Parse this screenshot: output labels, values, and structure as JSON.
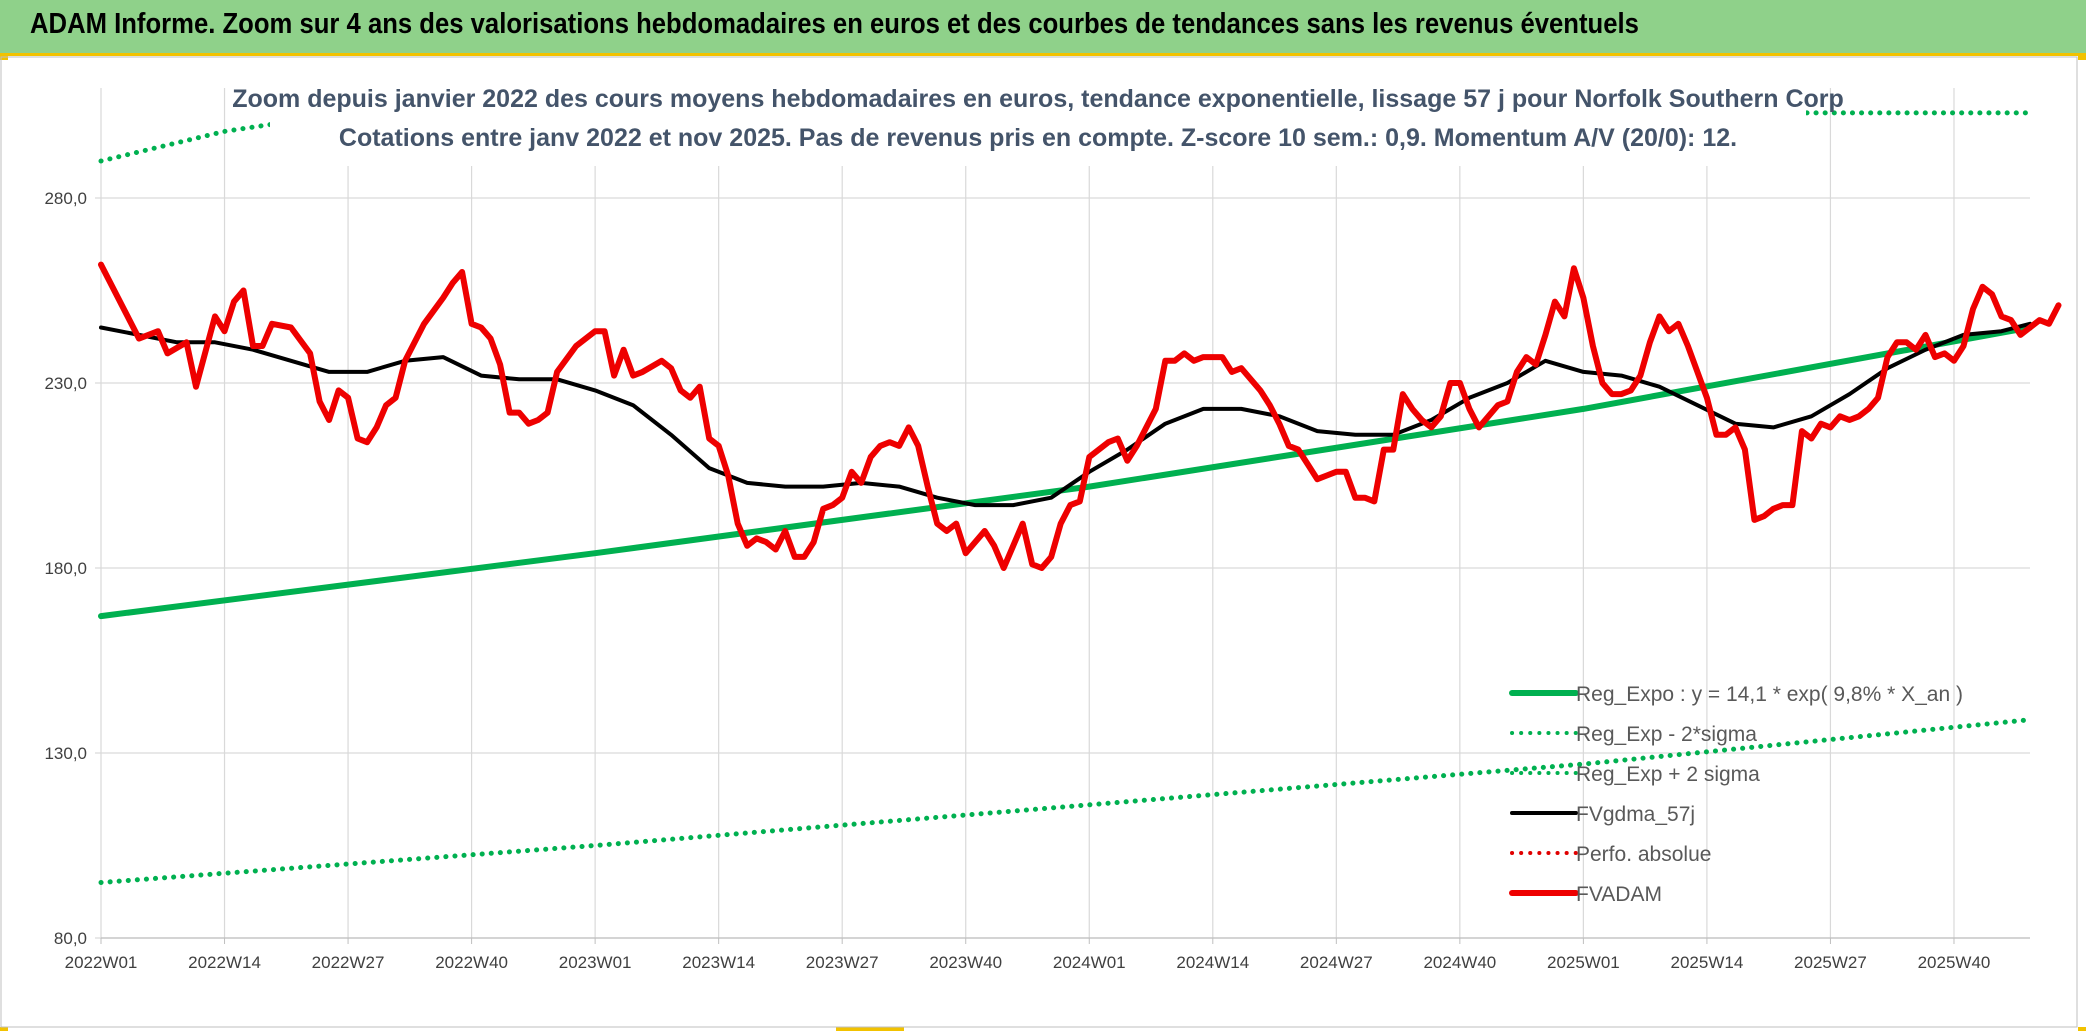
{
  "header": {
    "title": "ADAM Informe. Zoom sur 4 ans des valorisations hebdomadaires en euros et des courbes de tendances sans les revenus éventuels"
  },
  "colors": {
    "header_bg": "#8fd18a",
    "header_border": "#f2c200",
    "reg_expo": "#00b050",
    "fvgdma": "#000000",
    "perfo": "#e00000",
    "fvadam": "#ee0000",
    "title_text": "#44546a",
    "grid": "#d9d9d9"
  },
  "chart_data": {
    "type": "line",
    "title": "Zoom depuis janvier 2022 des cours moyens hebdomadaires en euros, tendance exponentielle, lissage 57 j pour Norfolk Southern Corp",
    "subtitle": "Cotations entre janv 2022 et nov 2025. Pas de revenus pris en compte. Z-score 10 sem.: 0,9. Momentum A/V (20/0): 12.",
    "ylim": [
      80,
      280
    ],
    "y_ticks": [
      280,
      230,
      180,
      130,
      80
    ],
    "y_tick_labels": [
      "280,0",
      "230,0",
      "180,0",
      "130,0",
      "80,0"
    ],
    "x_range_weeks": [
      0,
      203
    ],
    "x_ticks": [
      {
        "week": 0,
        "label": "2022W01"
      },
      {
        "week": 13,
        "label": "2022W14"
      },
      {
        "week": 26,
        "label": "2022W27"
      },
      {
        "week": 39,
        "label": "2022W40"
      },
      {
        "week": 52,
        "label": "2023W01"
      },
      {
        "week": 65,
        "label": "2023W14"
      },
      {
        "week": 78,
        "label": "2023W27"
      },
      {
        "week": 91,
        "label": "2023W40"
      },
      {
        "week": 104,
        "label": "2024W01"
      },
      {
        "week": 117,
        "label": "2024W14"
      },
      {
        "week": 130,
        "label": "2024W27"
      },
      {
        "week": 143,
        "label": "2024W40"
      },
      {
        "week": 156,
        "label": "2025W01"
      },
      {
        "week": 169,
        "label": "2025W14"
      },
      {
        "week": 182,
        "label": "2025W27"
      },
      {
        "week": 195,
        "label": "2025W40"
      }
    ],
    "grid": true,
    "legend_position": "bottom-right",
    "series": [
      {
        "name": "Reg_Expo : y = 14,1 * exp( 9,8% *  X_an )",
        "style": "solid-thick",
        "color": "#00b050",
        "points": [
          [
            0,
            167
          ],
          [
            52,
            184
          ],
          [
            104,
            202
          ],
          [
            156,
            223
          ],
          [
            203,
            245
          ]
        ]
      },
      {
        "name": "Reg_Exp - 2*sigma",
        "style": "dotted",
        "color": "#00b050",
        "points": [
          [
            0,
            95
          ],
          [
            52,
            105
          ],
          [
            104,
            116
          ],
          [
            156,
            127
          ],
          [
            203,
            139
          ]
        ]
      },
      {
        "name": "Reg_Exp + 2 sigma",
        "style": "dotted",
        "color": "#00b050",
        "points": [
          [
            0,
            290
          ],
          [
            13,
            298
          ],
          [
            26,
            303
          ],
          [
            182,
            303
          ],
          [
            203,
            303
          ]
        ]
      },
      {
        "name": "FVgdma_57j",
        "style": "solid",
        "color": "#000000",
        "points": [
          [
            0,
            245
          ],
          [
            4,
            243
          ],
          [
            8,
            241
          ],
          [
            12,
            241
          ],
          [
            16,
            239
          ],
          [
            20,
            236
          ],
          [
            24,
            233
          ],
          [
            28,
            233
          ],
          [
            32,
            236
          ],
          [
            36,
            237
          ],
          [
            40,
            232
          ],
          [
            44,
            231
          ],
          [
            48,
            231
          ],
          [
            52,
            228
          ],
          [
            56,
            224
          ],
          [
            60,
            216
          ],
          [
            64,
            207
          ],
          [
            68,
            203
          ],
          [
            72,
            202
          ],
          [
            76,
            202
          ],
          [
            80,
            203
          ],
          [
            84,
            202
          ],
          [
            88,
            199
          ],
          [
            92,
            197
          ],
          [
            96,
            197
          ],
          [
            100,
            199
          ],
          [
            104,
            206
          ],
          [
            108,
            212
          ],
          [
            112,
            219
          ],
          [
            116,
            223
          ],
          [
            120,
            223
          ],
          [
            124,
            221
          ],
          [
            128,
            217
          ],
          [
            132,
            216
          ],
          [
            136,
            216
          ],
          [
            140,
            220
          ],
          [
            144,
            226
          ],
          [
            148,
            230
          ],
          [
            152,
            236
          ],
          [
            156,
            233
          ],
          [
            160,
            232
          ],
          [
            164,
            229
          ],
          [
            168,
            224
          ],
          [
            172,
            219
          ],
          [
            176,
            218
          ],
          [
            180,
            221
          ],
          [
            184,
            227
          ],
          [
            188,
            234
          ],
          [
            192,
            239
          ],
          [
            196,
            243
          ],
          [
            200,
            244
          ],
          [
            203,
            246
          ]
        ]
      },
      {
        "name": "Perfo. absolue",
        "style": "dotted",
        "color": "#e00000",
        "points": []
      },
      {
        "name": "FVADAM",
        "style": "solid-thick",
        "color": "#ee0000",
        "points": [
          [
            0,
            262
          ],
          [
            2,
            252
          ],
          [
            4,
            242
          ],
          [
            6,
            244
          ],
          [
            7,
            238
          ],
          [
            9,
            241
          ],
          [
            10,
            229
          ],
          [
            12,
            248
          ],
          [
            13,
            244
          ],
          [
            14,
            252
          ],
          [
            15,
            255
          ],
          [
            16,
            240
          ],
          [
            17,
            240
          ],
          [
            18,
            246
          ],
          [
            20,
            245
          ],
          [
            22,
            238
          ],
          [
            23,
            225
          ],
          [
            24,
            220
          ],
          [
            25,
            228
          ],
          [
            26,
            226
          ],
          [
            27,
            215
          ],
          [
            28,
            214
          ],
          [
            29,
            218
          ],
          [
            30,
            224
          ],
          [
            31,
            226
          ],
          [
            32,
            236
          ],
          [
            34,
            246
          ],
          [
            36,
            253
          ],
          [
            37,
            257
          ],
          [
            38,
            260
          ],
          [
            39,
            246
          ],
          [
            40,
            245
          ],
          [
            41,
            242
          ],
          [
            42,
            235
          ],
          [
            43,
            222
          ],
          [
            44,
            222
          ],
          [
            45,
            219
          ],
          [
            46,
            220
          ],
          [
            47,
            222
          ],
          [
            48,
            233
          ],
          [
            50,
            240
          ],
          [
            52,
            244
          ],
          [
            53,
            244
          ],
          [
            54,
            232
          ],
          [
            55,
            239
          ],
          [
            56,
            232
          ],
          [
            57,
            233
          ],
          [
            59,
            236
          ],
          [
            60,
            234
          ],
          [
            61,
            228
          ],
          [
            62,
            226
          ],
          [
            63,
            229
          ],
          [
            64,
            215
          ],
          [
            65,
            213
          ],
          [
            66,
            205
          ],
          [
            67,
            192
          ],
          [
            68,
            186
          ],
          [
            69,
            188
          ],
          [
            70,
            187
          ],
          [
            71,
            185
          ],
          [
            72,
            190
          ],
          [
            73,
            183
          ],
          [
            74,
            183
          ],
          [
            75,
            187
          ],
          [
            76,
            196
          ],
          [
            77,
            197
          ],
          [
            78,
            199
          ],
          [
            79,
            206
          ],
          [
            80,
            203
          ],
          [
            81,
            210
          ],
          [
            82,
            213
          ],
          [
            83,
            214
          ],
          [
            84,
            213
          ],
          [
            85,
            218
          ],
          [
            86,
            213
          ],
          [
            87,
            202
          ],
          [
            88,
            192
          ],
          [
            89,
            190
          ],
          [
            90,
            192
          ],
          [
            91,
            184
          ],
          [
            92,
            187
          ],
          [
            93,
            190
          ],
          [
            94,
            186
          ],
          [
            95,
            180
          ],
          [
            96,
            186
          ],
          [
            97,
            192
          ],
          [
            98,
            181
          ],
          [
            99,
            180
          ],
          [
            100,
            183
          ],
          [
            101,
            192
          ],
          [
            102,
            197
          ],
          [
            103,
            198
          ],
          [
            104,
            210
          ],
          [
            105,
            212
          ],
          [
            106,
            214
          ],
          [
            107,
            215
          ],
          [
            108,
            209
          ],
          [
            109,
            213
          ],
          [
            110,
            218
          ],
          [
            111,
            223
          ],
          [
            112,
            236
          ],
          [
            113,
            236
          ],
          [
            114,
            238
          ],
          [
            115,
            236
          ],
          [
            116,
            237
          ],
          [
            117,
            237
          ],
          [
            118,
            237
          ],
          [
            119,
            233
          ],
          [
            120,
            234
          ],
          [
            121,
            231
          ],
          [
            122,
            228
          ],
          [
            123,
            224
          ],
          [
            124,
            219
          ],
          [
            125,
            213
          ],
          [
            126,
            212
          ],
          [
            127,
            208
          ],
          [
            128,
            204
          ],
          [
            129,
            205
          ],
          [
            130,
            206
          ],
          [
            131,
            206
          ],
          [
            132,
            199
          ],
          [
            133,
            199
          ],
          [
            134,
            198
          ],
          [
            135,
            212
          ],
          [
            136,
            212
          ],
          [
            137,
            227
          ],
          [
            138,
            223
          ],
          [
            139,
            220
          ],
          [
            140,
            218
          ],
          [
            141,
            221
          ],
          [
            142,
            230
          ],
          [
            143,
            230
          ],
          [
            144,
            223
          ],
          [
            145,
            218
          ],
          [
            146,
            221
          ],
          [
            147,
            224
          ],
          [
            148,
            225
          ],
          [
            149,
            233
          ],
          [
            150,
            237
          ],
          [
            151,
            235
          ],
          [
            152,
            243
          ],
          [
            153,
            252
          ],
          [
            154,
            248
          ],
          [
            155,
            261
          ],
          [
            156,
            253
          ],
          [
            157,
            240
          ],
          [
            158,
            230
          ],
          [
            159,
            227
          ],
          [
            160,
            227
          ],
          [
            161,
            228
          ],
          [
            162,
            232
          ],
          [
            163,
            241
          ],
          [
            164,
            248
          ],
          [
            165,
            244
          ],
          [
            166,
            246
          ],
          [
            167,
            240
          ],
          [
            168,
            233
          ],
          [
            169,
            226
          ],
          [
            170,
            216
          ],
          [
            171,
            216
          ],
          [
            172,
            218
          ],
          [
            173,
            212
          ],
          [
            174,
            193
          ],
          [
            175,
            194
          ],
          [
            176,
            196
          ],
          [
            177,
            197
          ],
          [
            178,
            197
          ],
          [
            179,
            217
          ],
          [
            180,
            215
          ],
          [
            181,
            219
          ],
          [
            182,
            218
          ],
          [
            183,
            221
          ],
          [
            184,
            220
          ],
          [
            185,
            221
          ],
          [
            186,
            223
          ],
          [
            187,
            226
          ],
          [
            188,
            237
          ],
          [
            189,
            241
          ],
          [
            190,
            241
          ],
          [
            191,
            239
          ],
          [
            192,
            243
          ],
          [
            193,
            237
          ],
          [
            194,
            238
          ],
          [
            195,
            236
          ],
          [
            196,
            240
          ],
          [
            197,
            250
          ],
          [
            198,
            256
          ],
          [
            199,
            254
          ],
          [
            200,
            248
          ],
          [
            201,
            247
          ],
          [
            202,
            243
          ],
          [
            203,
            245
          ],
          [
            204,
            247
          ],
          [
            205,
            246
          ],
          [
            206,
            251
          ]
        ]
      }
    ]
  }
}
